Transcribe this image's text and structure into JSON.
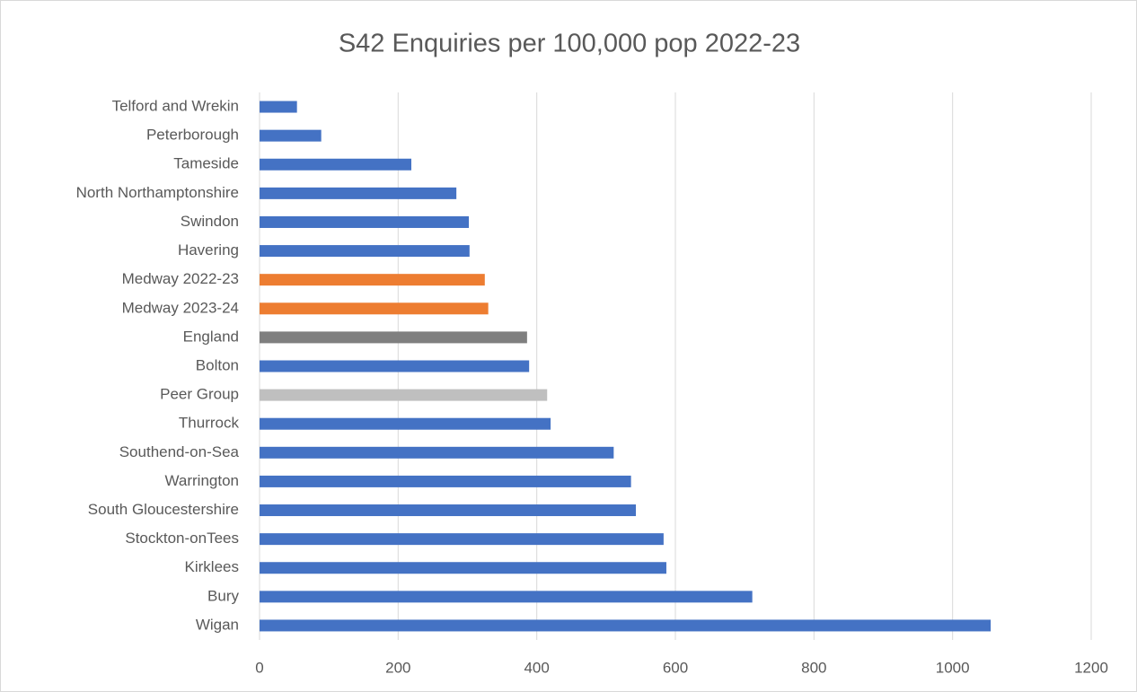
{
  "chart_data": {
    "type": "bar",
    "orientation": "horizontal",
    "title": "S42 Enquiries per 100,000 pop 2022-23",
    "categories": [
      "Telford and Wrekin",
      "Peterborough",
      "Tameside",
      "North Northamptonshire",
      "Swindon",
      "Havering",
      "Medway 2022-23",
      "Medway 2023-24",
      "England",
      "Bolton",
      "Peer Group",
      "Thurrock",
      "Southend-on-Sea",
      "Warrington",
      "South Gloucestershire",
      "Stockton-onTees",
      "Kirklees",
      "Bury",
      "Wigan"
    ],
    "values": [
      54,
      89,
      219,
      284,
      302,
      303,
      325,
      330,
      386,
      389,
      415,
      420,
      511,
      536,
      543,
      583,
      587,
      711,
      1055
    ],
    "colors": [
      "#4472c4",
      "#4472c4",
      "#4472c4",
      "#4472c4",
      "#4472c4",
      "#4472c4",
      "#ed7d31",
      "#ed7d31",
      "#7f7f7f",
      "#4472c4",
      "#bfbfbf",
      "#4472c4",
      "#4472c4",
      "#4472c4",
      "#4472c4",
      "#4472c4",
      "#4472c4",
      "#4472c4",
      "#4472c4"
    ],
    "xlim": [
      0,
      1200
    ],
    "xticks": [
      0,
      200,
      400,
      600,
      800,
      1000,
      1200
    ],
    "grid": true
  }
}
